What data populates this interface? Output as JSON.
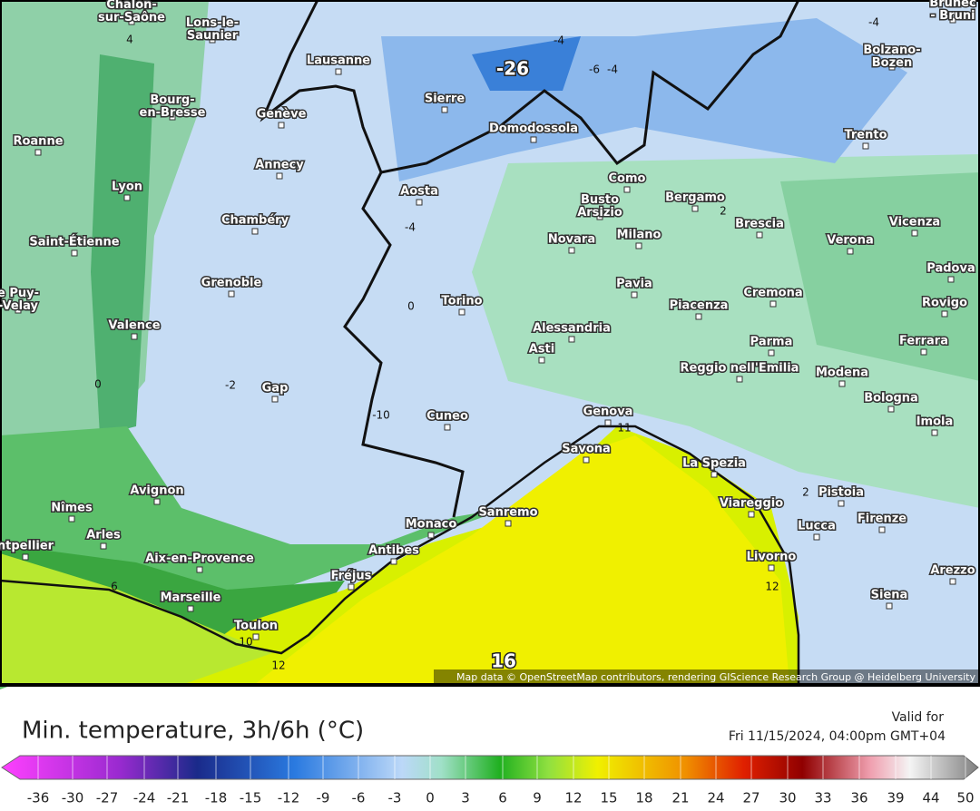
{
  "map": {
    "cities": [
      "Chalon-\nsur-Saône",
      "Lons-le-\nSaunier",
      "Lausanne",
      "Bourg-\nen-Bresse",
      "Genève",
      "Roanne",
      "Sierre",
      "Domodossola",
      "Annecy",
      "Lyon",
      "Aosta",
      "Chambéry",
      "Saint-Étienne",
      "Grenoble",
      "e Puy-\n-Velay",
      "Valence",
      "Gap",
      "Torino",
      "Cuneo",
      "Novara",
      "Busto\nArsizio",
      "Como",
      "Milano",
      "Bergamo",
      "Brescia",
      "Verona",
      "Vicenza",
      "Padova",
      "Rovigo",
      "Pavia",
      "Cremona",
      "Piacenza",
      "Alessandria",
      "Asti",
      "Parma",
      "Ferrara",
      "Reggio nell'Emilia",
      "Modena",
      "Bologna",
      "Imola",
      "Genova",
      "Savona",
      "La Spezia",
      "Viareggio",
      "Pistoia",
      "Lucca",
      "Firenze",
      "Livorno",
      "Arezzo",
      "Siena",
      "Trento",
      "Bolzano-\nBozen",
      "Brunec\n- Bruni",
      "Avignon",
      "Nîmes",
      "Arles",
      "ntpellier",
      "Aix-en-Provence",
      "Marseille",
      "Toulon",
      "Fréjus",
      "Antibes",
      "Monaco",
      "Sanremo"
    ],
    "contour_labels": [
      -26,
      -4,
      -6,
      -4,
      -4,
      4,
      2,
      -4,
      0,
      0,
      -2,
      -10,
      11,
      2,
      12,
      6,
      10,
      12,
      16
    ],
    "attribution": "Map data © OpenStreetMap contributors, rendering GIScience Research Group @ Heidelberg University"
  },
  "legend": {
    "title": "Min. temperature, 3h/6h (°C)",
    "valid_label": "Valid for",
    "valid_time": "Fri 11/15/2024, 04:00pm GMT+04",
    "ticks": [
      -36,
      -30,
      -27,
      -24,
      -21,
      -18,
      -15,
      -12,
      -9,
      -6,
      -3,
      0,
      3,
      6,
      9,
      12,
      15,
      18,
      21,
      24,
      27,
      30,
      33,
      36,
      39,
      44,
      50
    ]
  }
}
